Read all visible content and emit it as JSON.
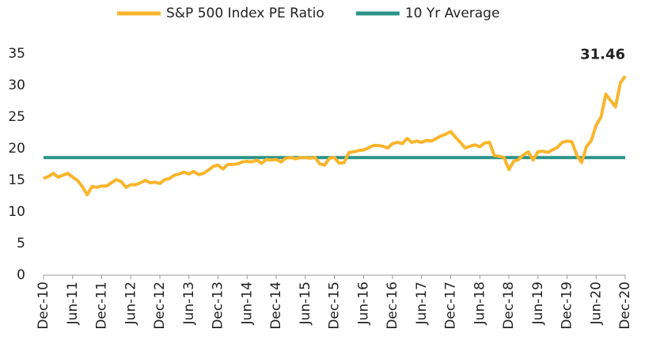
{
  "chart_data": {
    "type": "line",
    "categories": [
      "Dec-10",
      null,
      null,
      null,
      null,
      null,
      "Jun-11",
      null,
      null,
      null,
      null,
      null,
      "Dec-11",
      null,
      null,
      null,
      null,
      null,
      "Jun-12",
      null,
      null,
      null,
      null,
      null,
      "Dec-12",
      null,
      null,
      null,
      null,
      null,
      "Jun-13",
      null,
      null,
      null,
      null,
      null,
      "Dec-13",
      null,
      null,
      null,
      null,
      null,
      "Jun-14",
      null,
      null,
      null,
      null,
      null,
      "Dec-14",
      null,
      null,
      null,
      null,
      null,
      "Jun-15",
      null,
      null,
      null,
      null,
      null,
      "Dec-15",
      null,
      null,
      null,
      null,
      null,
      "Jun-16",
      null,
      null,
      null,
      null,
      null,
      "Dec-16",
      null,
      null,
      null,
      null,
      null,
      "Jun-17",
      null,
      null,
      null,
      null,
      null,
      "Dec-17",
      null,
      null,
      null,
      null,
      null,
      "Jun-18",
      null,
      null,
      null,
      null,
      null,
      "Dec-18",
      null,
      null,
      null,
      null,
      null,
      "Jun-19",
      null,
      null,
      null,
      null,
      null,
      "Dec-19",
      null,
      null,
      null,
      null,
      null,
      "Jun-20",
      null,
      null,
      null,
      null,
      null,
      "Dec-20"
    ],
    "series": [
      {
        "name": "S&P 500 Index PE Ratio",
        "color": "#f9b52b",
        "values": [
          15.3,
          15.6,
          16.1,
          15.5,
          15.8,
          16.1,
          15.5,
          15.0,
          14.0,
          12.7,
          14.0,
          13.9,
          14.1,
          14.1,
          14.6,
          15.1,
          14.8,
          13.9,
          14.3,
          14.3,
          14.6,
          15.0,
          14.6,
          14.7,
          14.5,
          15.1,
          15.3,
          15.8,
          16.0,
          16.3,
          16.0,
          16.4,
          15.9,
          16.1,
          16.6,
          17.2,
          17.4,
          16.8,
          17.5,
          17.5,
          17.6,
          17.9,
          18.0,
          17.9,
          18.2,
          17.7,
          18.3,
          18.2,
          18.3,
          17.9,
          18.5,
          18.6,
          18.4,
          18.6,
          18.6,
          18.5,
          18.6,
          17.6,
          17.4,
          18.5,
          18.6,
          17.7,
          17.8,
          19.4,
          19.5,
          19.7,
          19.8,
          20.1,
          20.5,
          20.5,
          20.4,
          20.1,
          20.8,
          21.0,
          20.8,
          21.6,
          21.0,
          21.2,
          21.0,
          21.3,
          21.2,
          21.6,
          22.0,
          22.3,
          22.7,
          21.8,
          21.0,
          20.1,
          20.4,
          20.6,
          20.3,
          20.9,
          21.0,
          18.9,
          18.8,
          18.6,
          16.7,
          18.0,
          18.3,
          19.0,
          19.5,
          18.2,
          19.5,
          19.6,
          19.4,
          19.8,
          20.2,
          21.0,
          21.2,
          21.1,
          19.0,
          17.8,
          20.3,
          21.3,
          23.7,
          25.0,
          28.6,
          27.6,
          26.6,
          30.4,
          31.46
        ]
      },
      {
        "name": "10 Yr Average",
        "color": "#2a9389",
        "values": [
          18.6,
          18.6,
          18.6,
          18.6,
          18.6,
          18.6,
          18.6,
          18.6,
          18.6,
          18.6,
          18.6,
          18.6,
          18.6,
          18.6,
          18.6,
          18.6,
          18.6,
          18.6,
          18.6,
          18.6,
          18.6,
          18.6,
          18.6,
          18.6,
          18.6,
          18.6,
          18.6,
          18.6,
          18.6,
          18.6,
          18.6,
          18.6,
          18.6,
          18.6,
          18.6,
          18.6,
          18.6,
          18.6,
          18.6,
          18.6,
          18.6,
          18.6,
          18.6,
          18.6,
          18.6,
          18.6,
          18.6,
          18.6,
          18.6,
          18.6,
          18.6,
          18.6,
          18.6,
          18.6,
          18.6,
          18.6,
          18.6,
          18.6,
          18.6,
          18.6,
          18.6,
          18.6,
          18.6,
          18.6,
          18.6,
          18.6,
          18.6,
          18.6,
          18.6,
          18.6,
          18.6,
          18.6,
          18.6,
          18.6,
          18.6,
          18.6,
          18.6,
          18.6,
          18.6,
          18.6,
          18.6,
          18.6,
          18.6,
          18.6,
          18.6,
          18.6,
          18.6,
          18.6,
          18.6,
          18.6,
          18.6,
          18.6,
          18.6,
          18.6,
          18.6,
          18.6,
          18.6,
          18.6,
          18.6,
          18.6,
          18.6,
          18.6,
          18.6,
          18.6,
          18.6,
          18.6,
          18.6,
          18.6,
          18.6,
          18.6,
          18.6,
          18.6,
          18.6,
          18.6,
          18.6,
          18.6,
          18.6,
          18.6,
          18.6,
          18.6,
          18.6
        ]
      }
    ],
    "ylim": [
      0,
      35
    ],
    "yticks": [
      0,
      5,
      10,
      15,
      20,
      25,
      30,
      35
    ],
    "grid": false,
    "legend": "top"
  }
}
